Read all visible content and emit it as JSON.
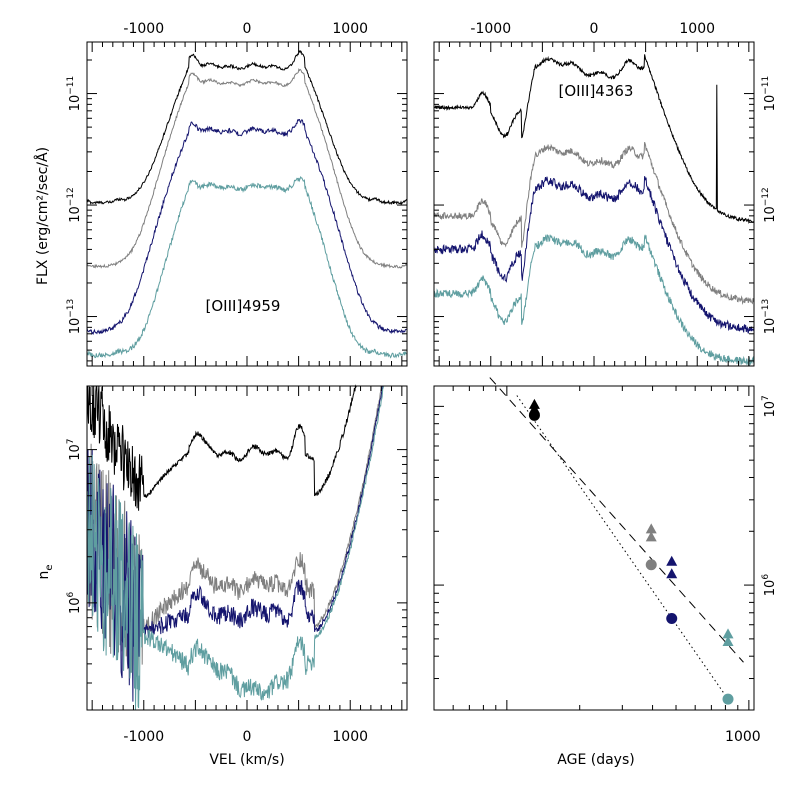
{
  "colors": {
    "black": "#000000",
    "gray": "#808080",
    "navy": "#14146e",
    "teal": "#5f9ea0"
  },
  "chart_data": [
    {
      "id": "oiii4959",
      "type": "line",
      "panel": "top-left",
      "annotation": "[OIII]4959",
      "xlim": [
        -1550,
        1550
      ],
      "ylog": true,
      "ylim": [
        3.6e-14,
        2.9e-11
      ],
      "top_ticks": [
        -1000,
        0,
        1000
      ],
      "top_tick_labels": [
        "-1000",
        "0",
        "1000"
      ],
      "y_ticks": [
        1e-11,
        1e-12,
        1e-13
      ],
      "y_tick_labels": [
        {
          "base": "10",
          "exp": "−11"
        },
        {
          "base": "10",
          "exp": "−12"
        },
        {
          "base": "10",
          "exp": "−13"
        }
      ],
      "ylabel": "FLX (erg/cm²/sec/Å)",
      "series": [
        {
          "name": "epoch1",
          "color": "black",
          "base": 1.05e-12,
          "plateau": 1.75e-11,
          "half_width": 560,
          "noise": 0.012,
          "shoulder": 1.3,
          "edge_steep": 0.0052
        },
        {
          "name": "epoch2",
          "color": "gray",
          "base": 2.8e-13,
          "plateau": 1.25e-11,
          "half_width": 560,
          "noise": 0.012,
          "shoulder": 1.25,
          "edge_steep": 0.0052
        },
        {
          "name": "epoch3",
          "color": "navy",
          "base": 7.2e-14,
          "plateau": 4.6e-12,
          "half_width": 560,
          "noise": 0.02,
          "shoulder": 1.2,
          "edge_steep": 0.0048
        },
        {
          "name": "epoch4",
          "color": "teal",
          "base": 4.5e-14,
          "plateau": 1.45e-12,
          "half_width": 560,
          "noise": 0.022,
          "shoulder": 1.15,
          "edge_steep": 0.0058
        }
      ]
    },
    {
      "id": "oiii4363",
      "type": "line",
      "panel": "top-right",
      "annotation": "[OIII]4363",
      "xlim": [
        -1550,
        1550
      ],
      "ylog": true,
      "ylim": [
        3.6e-14,
        2.9e-11
      ],
      "top_ticks": [
        -1000,
        0,
        1000
      ],
      "top_tick_labels": [
        "-1000",
        "0",
        "1000"
      ],
      "y_ticks": [
        1e-11,
        1e-12,
        1e-13
      ],
      "y_tick_labels": [
        {
          "base": "10",
          "exp": "−11"
        },
        {
          "base": "10",
          "exp": "−12"
        },
        {
          "base": "10",
          "exp": "−13"
        }
      ],
      "series": [
        {
          "name": "epoch1",
          "color": "black",
          "base": 7.5e-12,
          "floor": 7e-13,
          "plateau": 1.85e-11,
          "noise": 0.015,
          "spike_at": 1190
        },
        {
          "name": "epoch2",
          "color": "gray",
          "base": 8e-13,
          "floor": 1.35e-13,
          "plateau": 3e-12,
          "noise": 0.03
        },
        {
          "name": "epoch3",
          "color": "navy",
          "base": 4e-13,
          "floor": 7.5e-14,
          "plateau": 1.5e-12,
          "noise": 0.04
        },
        {
          "name": "epoch4",
          "color": "teal",
          "base": 1.6e-13,
          "floor": 3.9e-14,
          "plateau": 4.6e-13,
          "noise": 0.035
        }
      ]
    },
    {
      "id": "density",
      "type": "line",
      "panel": "bottom-left",
      "xlim": [
        -1550,
        1550
      ],
      "ylog": true,
      "ylim": [
        200000.0,
        26000000.0
      ],
      "bottom_ticks": [
        -1000,
        0,
        1000
      ],
      "bottom_tick_labels": [
        "-1000",
        "0",
        "1000"
      ],
      "y_ticks": [
        10000000.0,
        1000000.0
      ],
      "y_tick_labels": [
        {
          "base": "10",
          "exp": "7"
        },
        {
          "base": "10",
          "exp": "6"
        }
      ],
      "xlabel": "VEL (km/s)",
      "ylabel": "n",
      "ylabel_sub": "e",
      "series": [
        {
          "name": "epoch1",
          "color": "black",
          "level": 9500000.0,
          "edge": 5000000.0
        },
        {
          "name": "epoch2",
          "color": "gray",
          "level": 1300000.0,
          "edge": 700000.0
        },
        {
          "name": "epoch3",
          "color": "navy",
          "level": 850000.0,
          "edge": 650000.0
        },
        {
          "name": "epoch4",
          "color": "teal",
          "level": 380000.0,
          "edge": 600000.0
        }
      ]
    },
    {
      "id": "age_density",
      "type": "scatter",
      "panel": "bottom-right",
      "xlog": true,
      "xlim": [
        50,
        1050
      ],
      "ylog": true,
      "ylim": [
        200000.0,
        13000000.0
      ],
      "bottom_ticks": [
        1000
      ],
      "bottom_tick_labels": [
        "1000"
      ],
      "y_ticks": [
        10000000.0,
        1000000.0
      ],
      "y_tick_labels": [
        {
          "base": "10",
          "exp": "7"
        },
        {
          "base": "10",
          "exp": "6"
        }
      ],
      "xlabel": "AGE (days)",
      "points": [
        {
          "age": 130,
          "n": 10200000.0,
          "marker": "triangle",
          "color": "black"
        },
        {
          "age": 130,
          "n": 9600000.0,
          "marker": "triangle",
          "color": "black"
        },
        {
          "age": 130,
          "n": 8900000.0,
          "marker": "circle",
          "color": "black"
        },
        {
          "age": 395,
          "n": 2050000.0,
          "marker": "triangle",
          "color": "gray"
        },
        {
          "age": 395,
          "n": 1850000.0,
          "marker": "triangle",
          "color": "gray"
        },
        {
          "age": 395,
          "n": 1300000.0,
          "marker": "circle",
          "color": "gray"
        },
        {
          "age": 480,
          "n": 1350000.0,
          "marker": "triangle",
          "color": "navy"
        },
        {
          "age": 480,
          "n": 1150000.0,
          "marker": "triangle",
          "color": "navy"
        },
        {
          "age": 480,
          "n": 650000.0,
          "marker": "circle",
          "color": "navy"
        },
        {
          "age": 820,
          "n": 530000.0,
          "marker": "triangle",
          "color": "teal"
        },
        {
          "age": 820,
          "n": 480000.0,
          "marker": "triangle",
          "color": "teal"
        },
        {
          "age": 820,
          "n": 230000.0,
          "marker": "circle",
          "color": "teal"
        }
      ],
      "fits": [
        {
          "name": "dashed-fit",
          "style": "dashed",
          "from": [
            85,
            14500000.0
          ],
          "to": [
            950,
            370000.0
          ]
        },
        {
          "name": "dotted-fit",
          "style": "dotted",
          "from": [
            110,
            11500000.0
          ],
          "to": [
            820,
            230000.0
          ]
        }
      ]
    }
  ]
}
